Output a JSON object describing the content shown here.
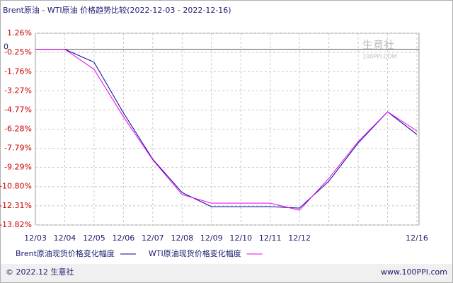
{
  "chart_data": {
    "type": "line",
    "title": "Brent原油 - WTI原油 价格趋势比较(2022-12-03 - 2022-12-16)",
    "categories": [
      "12/03",
      "12/04",
      "12/05",
      "12/06",
      "12/07",
      "12/08",
      "12/09",
      "12/10",
      "12/11",
      "12/12",
      null,
      null,
      null,
      "12/16"
    ],
    "series": [
      {
        "name": "Brent原油现货价格变化幅度",
        "color": "#000099",
        "values": [
          0,
          0,
          -1.02,
          -5.0,
          -8.65,
          -11.27,
          -12.38,
          -12.38,
          -12.38,
          -12.49,
          -10.37,
          -7.37,
          -4.92,
          -6.7
        ]
      },
      {
        "name": "WTI原油现货价格变化幅度",
        "color": "#ee00ee",
        "values": [
          0,
          0,
          -1.58,
          -5.31,
          -8.7,
          -11.43,
          -12.1,
          -12.1,
          -12.1,
          -12.66,
          -10.15,
          -7.26,
          -4.92,
          -6.42
        ]
      }
    ],
    "ylim": [
      -13.82,
      1.26
    ],
    "yticks": [
      {
        "value": 1.26,
        "label": "1.26%"
      },
      {
        "value": -0.25,
        "label": "-0.25%"
      },
      {
        "value": -1.76,
        "label": "-1.76%"
      },
      {
        "value": -3.27,
        "label": "-3.27%"
      },
      {
        "value": -4.77,
        "label": "-4.77%"
      },
      {
        "value": -6.28,
        "label": "-6.28%"
      },
      {
        "value": -7.79,
        "label": "-7.79%"
      },
      {
        "value": -9.29,
        "label": "-9.29%"
      },
      {
        "value": -10.8,
        "label": "-10.80%"
      },
      {
        "value": -12.31,
        "label": "-12.31%"
      },
      {
        "value": -13.82,
        "label": "-13.82%"
      }
    ],
    "zero_line": {
      "value": 0,
      "label": "0"
    },
    "grid": true,
    "watermark": {
      "name": "生意社",
      "site": "100PPI.COM"
    },
    "footer": {
      "left": "© 2022.12 生意社",
      "right": "www.100PPI.com"
    }
  }
}
